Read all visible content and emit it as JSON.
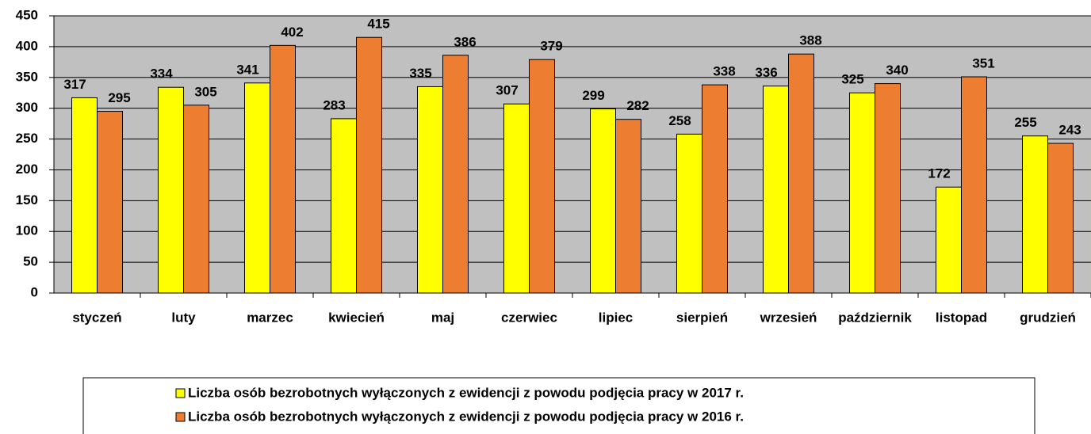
{
  "chart_data": {
    "type": "bar",
    "categories": [
      "styczeń",
      "luty",
      "marzec",
      "kwiecień",
      "maj",
      "czerwiec",
      "lipiec",
      "sierpień",
      "wrzesień",
      "październik",
      "listopad",
      "grudzień"
    ],
    "series": [
      {
        "name": "Liczba osób bezrobotnych wyłączonych z ewidencji z powodu podjęcia pracy w 2017 r.",
        "color": "#ffff00",
        "values": [
          317,
          334,
          341,
          283,
          335,
          307,
          299,
          258,
          336,
          325,
          172,
          255
        ]
      },
      {
        "name": "Liczba osób bezrobotnych wyłączonych z ewidencji z powodu podjęcia pracy w 2016 r.",
        "color": "#ed7d31",
        "values": [
          295,
          305,
          402,
          415,
          386,
          379,
          282,
          338,
          388,
          340,
          351,
          243
        ]
      }
    ],
    "ylim": [
      0,
      450
    ],
    "yticks": [
      0,
      50,
      100,
      150,
      200,
      250,
      300,
      350,
      400,
      450
    ],
    "grid": true,
    "legend": "bottom",
    "plot_background": "#c0c0c0"
  }
}
